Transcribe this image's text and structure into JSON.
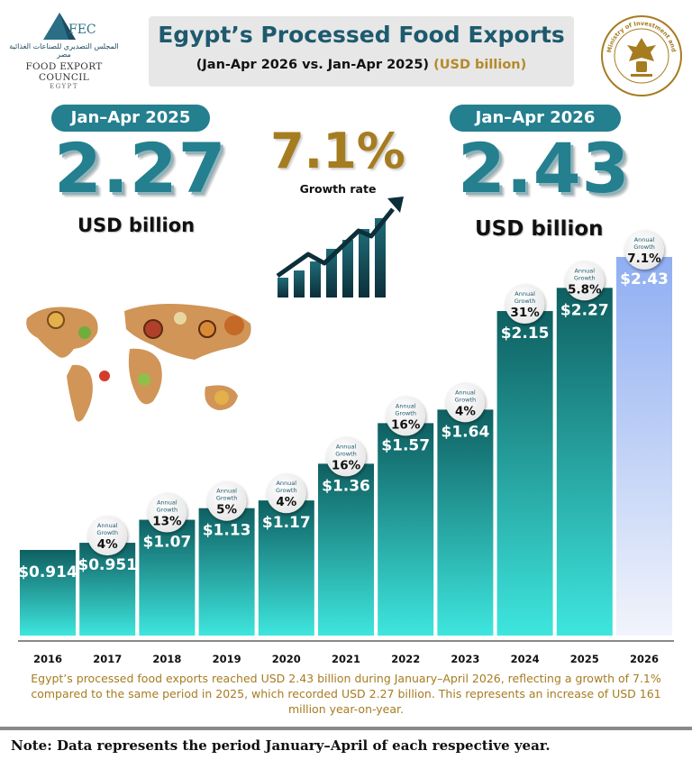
{
  "header": {
    "logo_arabic": "المجلس التصديري للصناعات الغذائية مصر",
    "logo_abbr": "FEC",
    "logo_name": "FOOD EXPORT COUNCIL",
    "logo_country": "EGYPT",
    "title": "Egypt’s Processed Food Exports",
    "subtitle": "(Jan-Apr 2026 vs. Jan-Apr 2025)",
    "unit": "(USD billion)",
    "seal_text": "Ministry of Investment and Foreign Trade"
  },
  "kpis": {
    "prev": {
      "label": "Jan–Apr 2025",
      "value": "2.27",
      "unit": "USD billion"
    },
    "curr": {
      "label": "Jan–Apr 2026",
      "value": "2.43",
      "unit": "USD billion"
    },
    "growth": {
      "value": "7.1%",
      "label": "Growth rate"
    }
  },
  "chart_data": {
    "type": "bar",
    "categories": [
      "2016",
      "2017",
      "2018",
      "2019",
      "2020",
      "2021",
      "2022",
      "2023",
      "2024",
      "2025",
      "2026"
    ],
    "values": [
      0.914,
      0.951,
      1.07,
      1.13,
      1.17,
      1.36,
      1.57,
      1.64,
      2.15,
      2.27,
      2.43
    ],
    "value_labels": [
      "$0.914",
      "$0.951",
      "$1.07",
      "$1.13",
      "$1.17",
      "$1.36",
      "$1.57",
      "$1.64",
      "$2.15",
      "$2.27",
      "$2.43"
    ],
    "annual_growth": [
      null,
      "4%",
      "13%",
      "5%",
      "4%",
      "16%",
      "16%",
      "4%",
      "31%",
      "5.8%",
      "7.1%"
    ],
    "growth_badge_label": "Annual Growth",
    "highlight_category": "2026",
    "colors": {
      "bar_top": "#0f5f61",
      "bar_bottom": "#3ee6de",
      "highlight": "#8faef2",
      "badge": "#e6e6e6"
    }
  },
  "footer": {
    "summary": "Egypt’s processed food exports reached USD 2.43 billion during January–April 2026, reflecting a growth of 7.1% compared to the same period in 2025, which recorded USD 2.27 billion. This represents an increase of USD 161 million year-on-year.",
    "note": "Note: Data represents the period January–April of each respective year."
  }
}
